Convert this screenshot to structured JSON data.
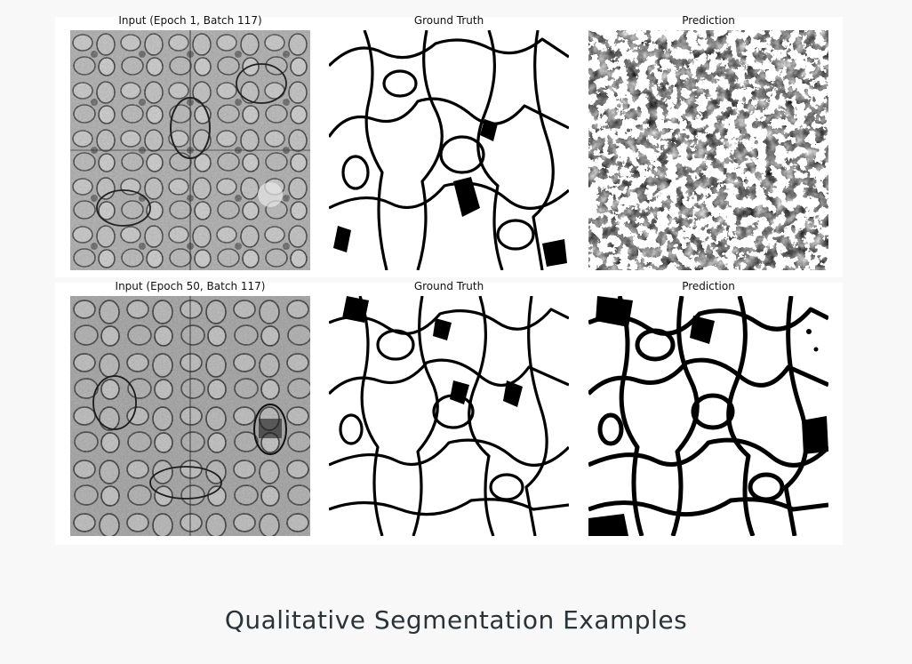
{
  "rows": [
    {
      "titles": {
        "input": "Input (Epoch 1, Batch 117)",
        "ground_truth": "Ground Truth",
        "prediction": "Prediction"
      }
    },
    {
      "titles": {
        "input": "Input (Epoch 50, Batch 117)",
        "ground_truth": "Ground Truth",
        "prediction": "Prediction"
      }
    }
  ],
  "caption": "Qualitative Segmentation Examples"
}
